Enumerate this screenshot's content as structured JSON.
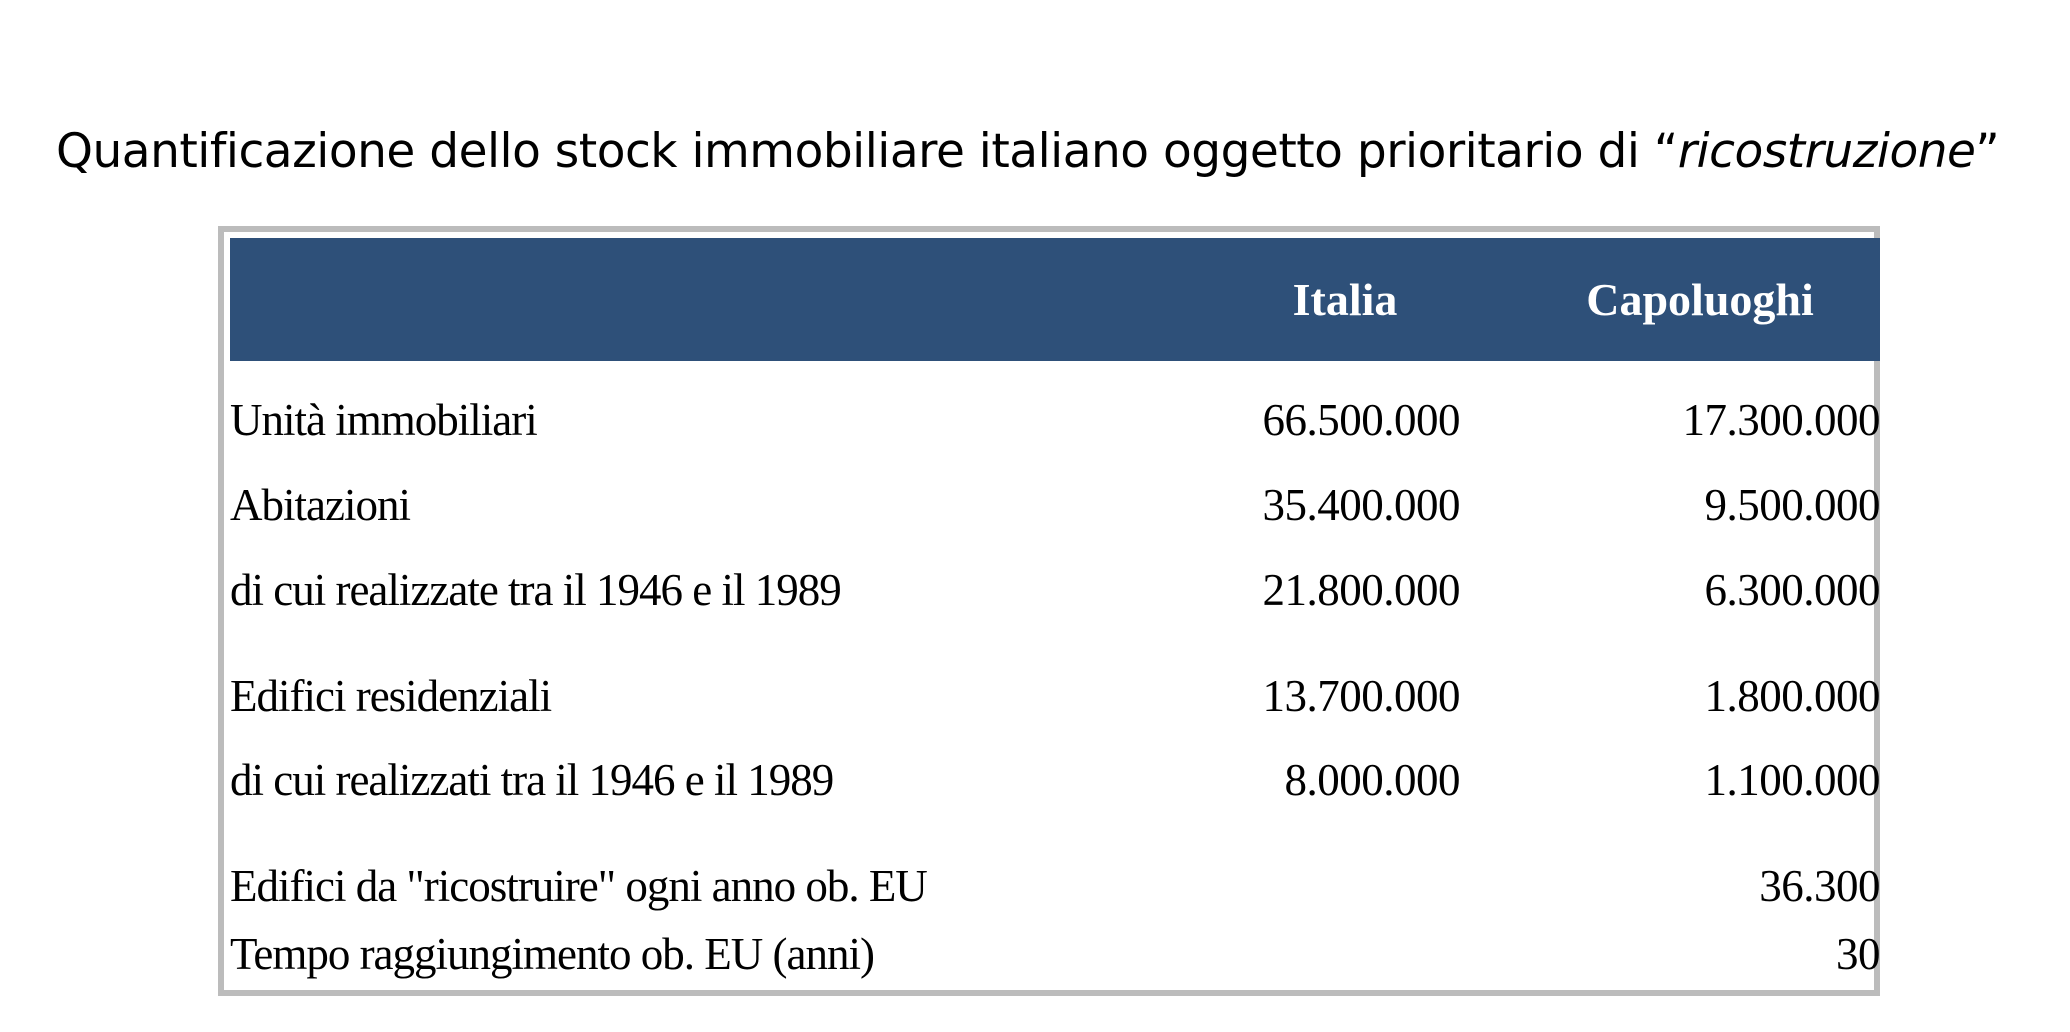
{
  "title": {
    "main": "Quantificazione dello stock immobiliare italiano oggetto prioritario di “",
    "emphasis": "ricostruzione",
    "close": "”"
  },
  "table": {
    "headers": {
      "label": "",
      "italia": "Italia",
      "capoluoghi": "Capoluoghi"
    },
    "rows": [
      {
        "label": "Unità immobiliari",
        "italia": "66.500.000",
        "capoluoghi": "17.300.000"
      },
      {
        "label": "Abitazioni",
        "italia": "35.400.000",
        "capoluoghi": "9.500.000"
      },
      {
        "label": "di cui realizzate tra il 1946 e il 1989",
        "italia": "21.800.000",
        "capoluoghi": "6.300.000"
      },
      {
        "label": "Edifici residenziali",
        "italia": "13.700.000",
        "capoluoghi": "1.800.000"
      },
      {
        "label": "di cui realizzati tra il 1946 e il 1989",
        "italia": "8.000.000",
        "capoluoghi": "1.100.000"
      },
      {
        "label": "Edifici da \"ricostruire\" ogni anno ob. EU",
        "italia": "",
        "capoluoghi": "36.300"
      },
      {
        "label": "Tempo raggiungimento ob. EU (anni)",
        "italia": "",
        "capoluoghi": "30"
      }
    ]
  },
  "colors": {
    "header_bg": "#2e5079",
    "header_text": "#ffffff",
    "frame_border": "#bcbcbc"
  }
}
